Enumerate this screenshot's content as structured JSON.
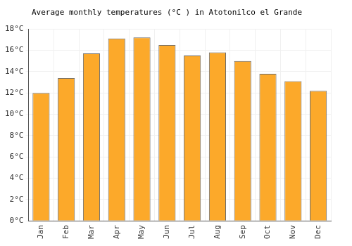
{
  "chart_data": {
    "type": "bar",
    "title": "Average monthly temperatures (°C ) in Atotonilco el Grande",
    "categories": [
      "Jan",
      "Feb",
      "Mar",
      "Apr",
      "May",
      "Jun",
      "Jul",
      "Aug",
      "Sep",
      "Oct",
      "Nov",
      "Dec"
    ],
    "values": [
      12.0,
      13.4,
      15.7,
      17.1,
      17.2,
      16.5,
      15.5,
      15.8,
      15.0,
      13.8,
      13.1,
      12.2
    ],
    "color": "#fca92a",
    "ylim": [
      0,
      18
    ],
    "yticks": [
      {
        "value": 0,
        "label": "0°C"
      },
      {
        "value": 2,
        "label": "2°C"
      },
      {
        "value": 4,
        "label": "4°C"
      },
      {
        "value": 6,
        "label": "6°C"
      },
      {
        "value": 8,
        "label": "8°C"
      },
      {
        "value": 10,
        "label": "10°C"
      },
      {
        "value": 12,
        "label": "12°C"
      },
      {
        "value": 14,
        "label": "14°C"
      },
      {
        "value": 16,
        "label": "16°C"
      },
      {
        "value": 18,
        "label": "18°C"
      }
    ],
    "grid": true
  }
}
